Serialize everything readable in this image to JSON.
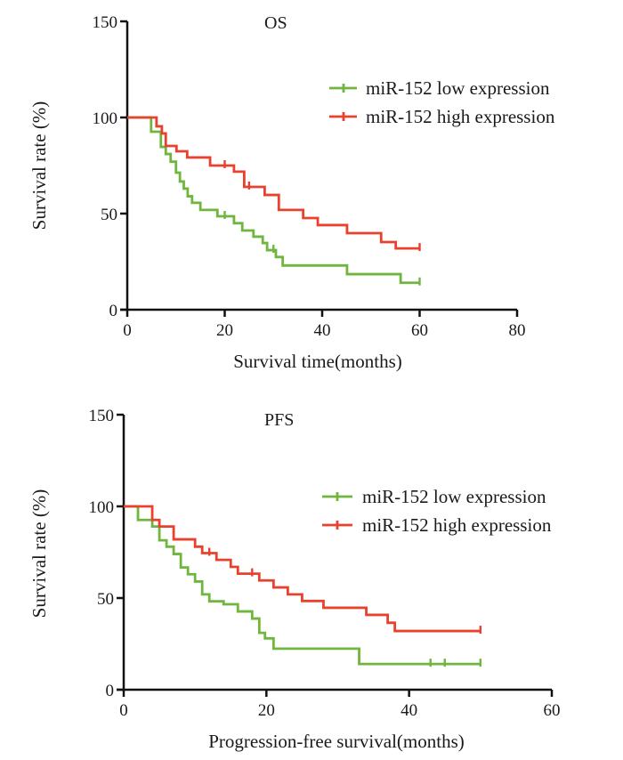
{
  "colors": {
    "low": "#6fb53e",
    "high": "#e8412d",
    "axis": "#111111"
  },
  "chart_data": [
    {
      "type": "line",
      "subtype": "kaplan-meier step",
      "title": "OS",
      "xlabel": "Survival time(months)",
      "ylabel": "Survival rate (%)",
      "xlim": [
        0,
        80
      ],
      "ylim": [
        0,
        150
      ],
      "xticks": [
        "0",
        "20",
        "40",
        "60",
        "80"
      ],
      "yticks": [
        "0",
        "50",
        "100",
        "150"
      ],
      "xtick_values": [
        0,
        20,
        40,
        60,
        80
      ],
      "ytick_values": [
        0,
        50,
        100,
        150
      ],
      "grid": false,
      "legend_position": "top-right",
      "series": [
        {
          "name": "miR-152 low expression",
          "key": "low",
          "steps": [
            [
              0,
              100
            ],
            [
              4.9,
              92.6
            ],
            [
              6.9,
              84.7
            ],
            [
              7.9,
              81
            ],
            [
              8.9,
              77
            ],
            [
              10.0,
              71.3
            ],
            [
              10.8,
              66.7
            ],
            [
              11.6,
              63
            ],
            [
              12.4,
              59
            ],
            [
              13.3,
              55.6
            ],
            [
              15.0,
              51.9
            ],
            [
              18.5,
              48.6
            ],
            [
              21.9,
              45
            ],
            [
              23.6,
              41.2
            ],
            [
              25.9,
              38
            ],
            [
              27.8,
              34.7
            ],
            [
              28.7,
              31
            ],
            [
              30.5,
              27.4
            ],
            [
              31.9,
              23
            ],
            [
              45.1,
              18.5
            ],
            [
              56.1,
              14
            ]
          ],
          "end": 60,
          "censor_ticks": [
            20,
            30,
            60
          ]
        },
        {
          "name": "miR-152 high expression",
          "key": "high",
          "steps": [
            [
              0,
              100
            ],
            [
              6.0,
              95.4
            ],
            [
              7.1,
              91.7
            ],
            [
              7.9,
              85.2
            ],
            [
              10.1,
              82.4
            ],
            [
              12.3,
              79.2
            ],
            [
              17.0,
              75
            ],
            [
              21.9,
              71.8
            ],
            [
              24.0,
              63.9
            ],
            [
              28.2,
              59.7
            ],
            [
              31.1,
              51.9
            ],
            [
              36.1,
              47.7
            ],
            [
              39.1,
              44
            ],
            [
              45.1,
              39.8
            ],
            [
              52.1,
              35.2
            ],
            [
              55.1,
              31.9
            ]
          ],
          "end": 60,
          "censor_ticks": [
            20,
            25,
            60
          ]
        }
      ]
    },
    {
      "type": "line",
      "subtype": "kaplan-meier step",
      "title": "PFS",
      "xlabel": "Progression-free survival(months)",
      "ylabel": "Survival rate (%)",
      "xlim": [
        0,
        60
      ],
      "ylim": [
        0,
        150
      ],
      "xticks": [
        "0",
        "20",
        "40",
        "60"
      ],
      "yticks": [
        "0",
        "50",
        "100",
        "150"
      ],
      "xtick_values": [
        0,
        20,
        40,
        60
      ],
      "ytick_values": [
        0,
        50,
        100,
        150
      ],
      "grid": false,
      "legend_position": "top-right",
      "series": [
        {
          "name": "miR-152 low expression",
          "key": "low",
          "steps": [
            [
              0,
              100
            ],
            [
              2,
              92.6
            ],
            [
              4,
              89
            ],
            [
              5,
              81.5
            ],
            [
              6,
              78
            ],
            [
              7,
              74
            ],
            [
              8,
              66.7
            ],
            [
              9,
              63
            ],
            [
              10,
              59
            ],
            [
              11,
              52
            ],
            [
              12,
              48.2
            ],
            [
              14,
              46.6
            ],
            [
              16,
              42.7
            ],
            [
              18,
              38.8
            ],
            [
              19,
              31
            ],
            [
              19.8,
              28
            ],
            [
              21,
              22.4
            ],
            [
              33,
              14
            ]
          ],
          "end": 50,
          "censor_ticks": [
            43,
            45,
            50
          ]
        },
        {
          "name": "miR-152 high expression",
          "key": "high",
          "steps": [
            [
              0,
              100
            ],
            [
              4,
              92.6
            ],
            [
              5,
              89
            ],
            [
              7,
              82
            ],
            [
              10,
              78
            ],
            [
              11,
              74.5
            ],
            [
              13,
              70.8
            ],
            [
              15,
              67
            ],
            [
              16,
              63.3
            ],
            [
              19,
              59.6
            ],
            [
              21,
              55.8
            ],
            [
              23,
              52
            ],
            [
              25,
              48.4
            ],
            [
              28,
              44.7
            ],
            [
              34,
              40.8
            ],
            [
              37,
              36.5
            ],
            [
              38,
              32
            ]
          ],
          "end": 50,
          "censor_ticks": [
            12,
            18,
            50
          ]
        }
      ]
    }
  ]
}
